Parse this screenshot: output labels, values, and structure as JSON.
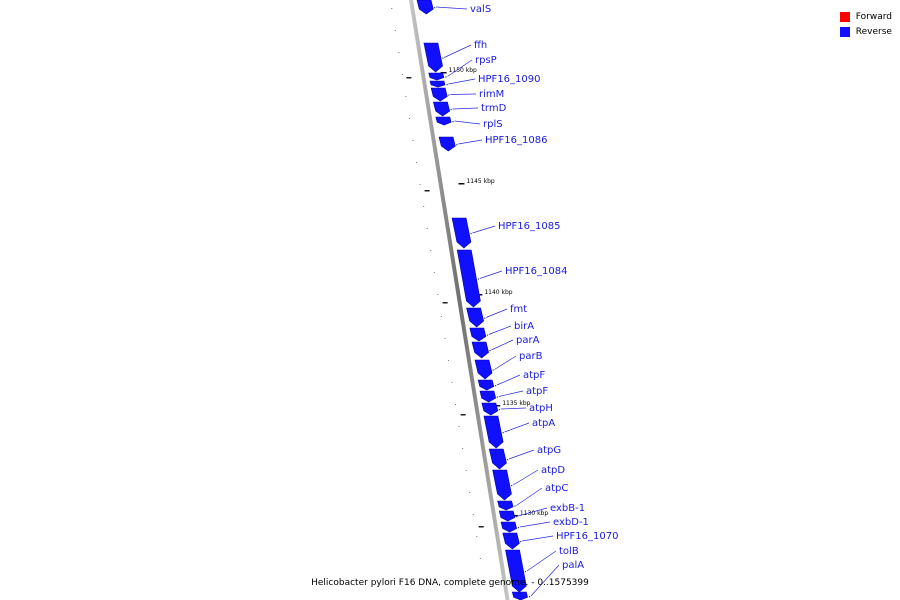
{
  "legend": {
    "forward_label": "Forward",
    "forward_color": "#ff0000",
    "reverse_label": "Reverse",
    "reverse_color": "#1010ff"
  },
  "caption": "Helicobacter pylori F16 DNA, complete genome. - 0..1575399",
  "ticks": [
    "1150 kbp",
    "1145 kbp",
    "1140 kbp",
    "1135 kbp",
    "1130 kbp"
  ],
  "genes": [
    "valS",
    "ffh",
    "rpsP",
    "HPF16_1090",
    "rimM",
    "trmD",
    "rplS",
    "HPF16_1086",
    "HPF16_1085",
    "HPF16_1084",
    "fmt",
    "birA",
    "parA",
    "parB",
    "atpF",
    "atpF",
    "atpH",
    "atpA",
    "atpG",
    "atpD",
    "atpC",
    "exbB-1",
    "exbD-1",
    "HPF16_1070",
    "tolB",
    "palA"
  ],
  "strand": "Reverse"
}
